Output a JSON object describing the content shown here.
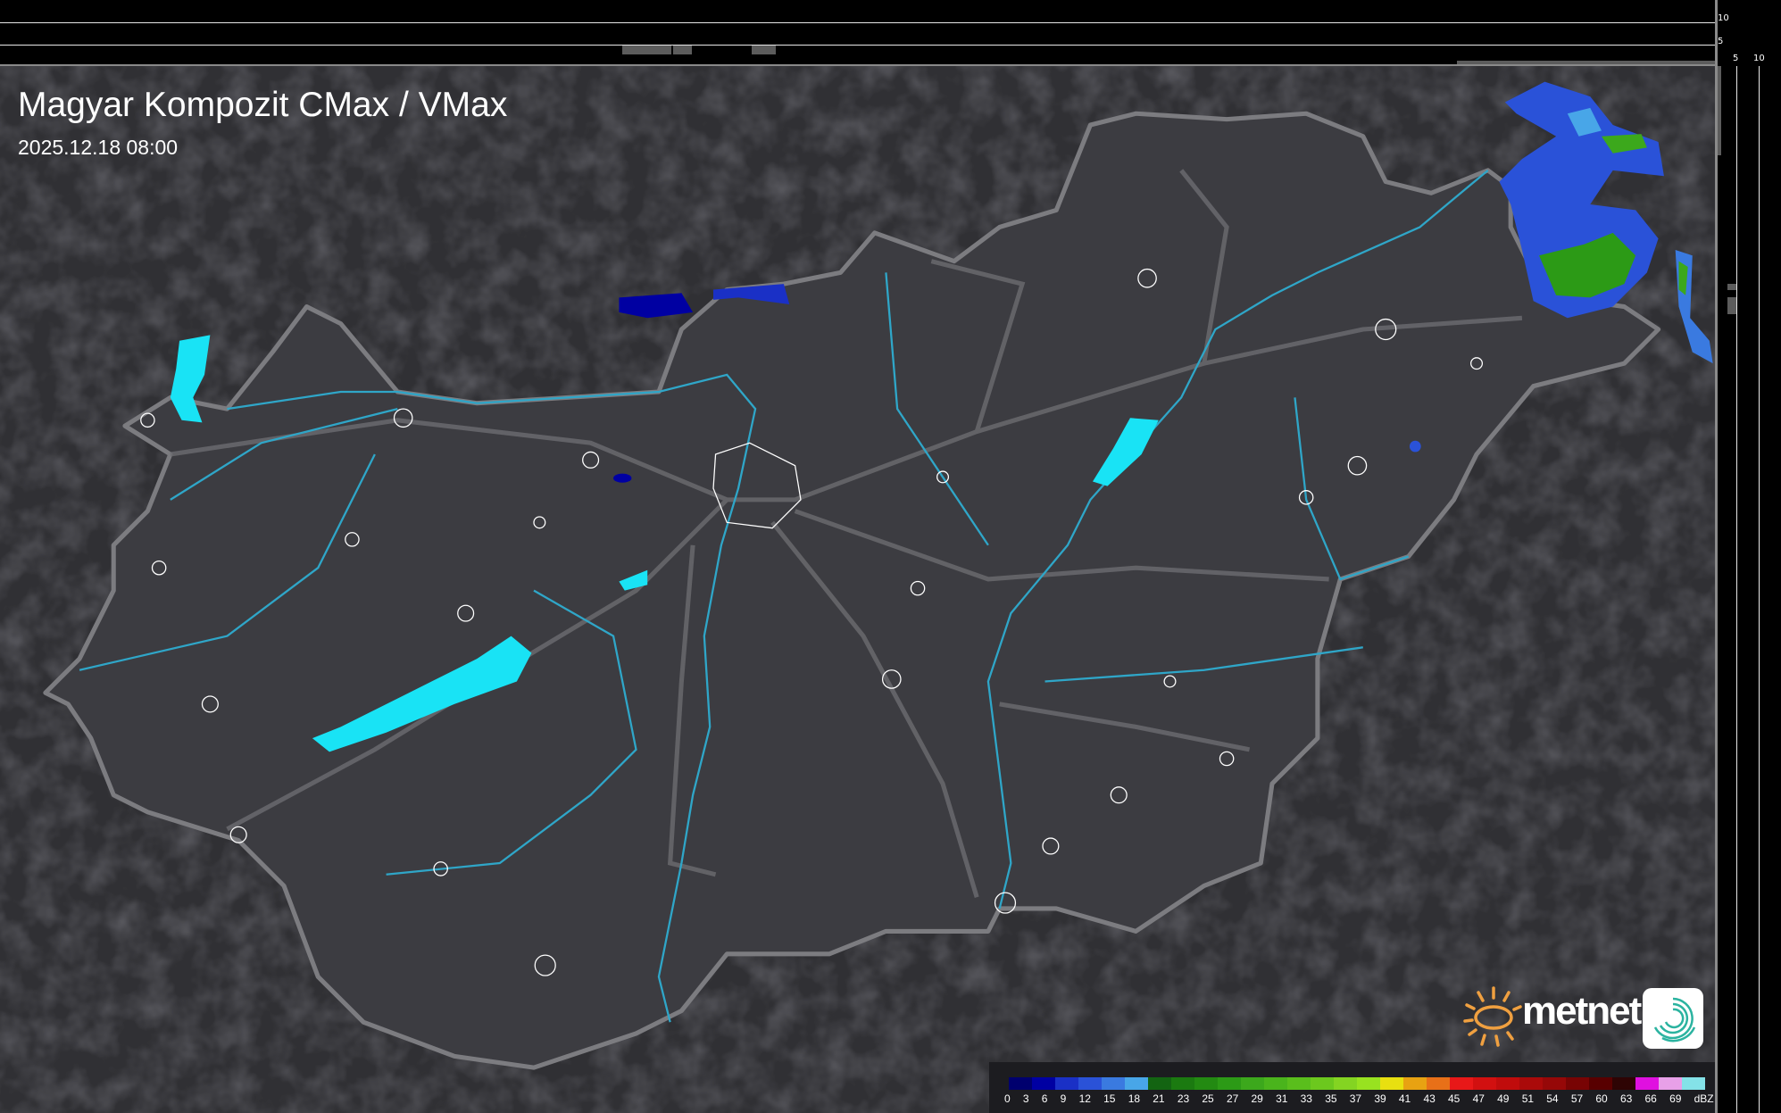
{
  "header": {
    "title": "Magyar Kompozit CMax / VMax",
    "timestamp": "2025.12.18 08:00"
  },
  "side_scales": {
    "top_labels": [
      "10",
      "5"
    ],
    "right_labels": [
      "5",
      "10"
    ]
  },
  "legend": {
    "unit": "dBZ",
    "labels": [
      "0",
      "3",
      "6",
      "9",
      "12",
      "15",
      "18",
      "21",
      "23",
      "25",
      "27",
      "29",
      "31",
      "33",
      "35",
      "37",
      "39",
      "41",
      "43",
      "45",
      "47",
      "49",
      "51",
      "54",
      "57",
      "60",
      "63",
      "66",
      "69"
    ],
    "colors": [
      "#00006e",
      "#0000a2",
      "#1a30c6",
      "#2a52d8",
      "#3a7ae0",
      "#48a6e8",
      "#136412",
      "#1b7a10",
      "#238a12",
      "#2c9a16",
      "#3ca81c",
      "#4ab41c",
      "#5abe1c",
      "#6cc81e",
      "#84d422",
      "#98e220",
      "#e8e010",
      "#e8a212",
      "#e87018",
      "#e81818",
      "#d21010",
      "#c00c0c",
      "#aa0a0a",
      "#960808",
      "#780404",
      "#580000",
      "#2e0404",
      "#e010e0",
      "#e8a0e8",
      "#84e2e8"
    ]
  },
  "logo": {
    "brand": "metnet"
  },
  "colors": {
    "background": "#2f2f33",
    "country": "#3c3c41",
    "border": "#7a7a7e",
    "rivers": "#2fa6c8",
    "lakes": "#19e3f5"
  }
}
